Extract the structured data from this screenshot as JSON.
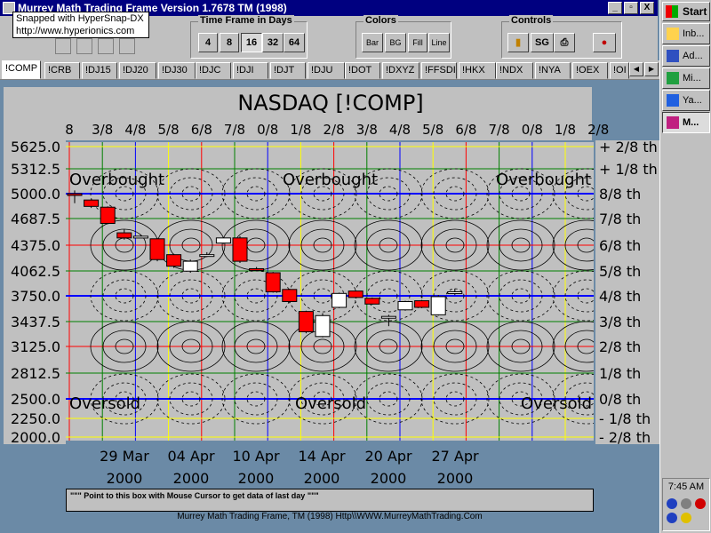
{
  "window": {
    "title": "Murrey Math Trading Frame Version 1.7678  TM (1998)",
    "buttons": [
      "_",
      "▫",
      "X"
    ]
  },
  "snapshot": {
    "line1": "Snapped with HyperSnap-DX",
    "line2": "http://www.hyperionics.com"
  },
  "timeframe": {
    "label": "Time Frame in Days",
    "options": [
      "4",
      "8",
      "16",
      "32",
      "64"
    ],
    "selected": "16"
  },
  "colors": {
    "label": "Colors",
    "options": [
      "Bar",
      "BG",
      "Fill",
      "Line"
    ]
  },
  "controls": {
    "label": "Controls",
    "sg": "SG"
  },
  "tabs": [
    "!COMP",
    "!CRB",
    "!DJ15",
    "!DJ20",
    "!DJ30",
    "!DJC",
    "!DJI",
    "!DJT",
    "!DJU",
    "!DOT",
    "!DXYZ",
    "!FFSDI",
    "!HKX",
    "!NDX",
    "!NYA",
    "!OEX",
    "!OI"
  ],
  "chart_data": {
    "type": "candlestick",
    "title": "NASDAQ [!COMP]",
    "top_ticks": [
      "8",
      "3/8",
      "4/8",
      "5/8",
      "6/8",
      "7/8",
      "0/8",
      "1/8",
      "2/8",
      "3/8",
      "4/8",
      "5/8",
      "6/8",
      "7/8",
      "0/8",
      "1/8",
      "2/8"
    ],
    "y_ticks": [
      "5625.0",
      "5312.5",
      "5000.0",
      "4687.5",
      "4375.0",
      "4062.5",
      "3750.0",
      "3437.5",
      "3125.0",
      "2812.5",
      "2500.0",
      "2250.0",
      "2000.0"
    ],
    "y_values": [
      5625.0,
      5312.5,
      5000.0,
      4687.5,
      4375.0,
      4062.5,
      3750.0,
      3437.5,
      3125.0,
      2812.5,
      2500.0,
      2250.0,
      2000.0
    ],
    "right_ticks": [
      "+ 2/8 th",
      "+ 1/8 th",
      "8/8 th",
      "7/8 th",
      "6/8 th",
      "5/8 th",
      "4/8 th",
      "3/8 th",
      "2/8 th",
      "1/8 th",
      "0/8 th",
      "- 1/8 th",
      "- 2/8 th"
    ],
    "x_labels": [
      {
        "date": "29 Mar",
        "year": "2000"
      },
      {
        "date": "04 Apr",
        "year": "2000"
      },
      {
        "date": "10 Apr",
        "year": "2000"
      },
      {
        "date": "14 Apr",
        "year": "2000"
      },
      {
        "date": "20 Apr",
        "year": "2000"
      },
      {
        "date": "27 Apr",
        "year": "2000"
      }
    ],
    "annotations": {
      "overbought": [
        "Overbought",
        "Overbought",
        "Overbought"
      ],
      "oversold": [
        "Oversold",
        "Oversold",
        "Oversold"
      ]
    },
    "candles": [
      {
        "open": 5000,
        "close": 4990,
        "high": 5040,
        "low": 4880
      },
      {
        "open": 4920,
        "close": 4840,
        "high": 4930,
        "low": 4820
      },
      {
        "open": 4830,
        "close": 4630,
        "high": 4840,
        "low": 4620
      },
      {
        "open": 4520,
        "close": 4460,
        "high": 4560,
        "low": 4440
      },
      {
        "open": 4480,
        "close": 4480,
        "high": 4500,
        "low": 4460
      },
      {
        "open": 4450,
        "close": 4200,
        "high": 4460,
        "low": 4180
      },
      {
        "open": 4260,
        "close": 4120,
        "high": 4270,
        "low": 4100
      },
      {
        "open": 4060,
        "close": 4180,
        "high": 4200,
        "low": 4040
      },
      {
        "open": 4260,
        "close": 4260,
        "high": 4290,
        "low": 4230
      },
      {
        "open": 4400,
        "close": 4460,
        "high": 4470,
        "low": 4390
      },
      {
        "open": 4460,
        "close": 4180,
        "high": 4480,
        "low": 4160
      },
      {
        "open": 4090,
        "close": 4080,
        "high": 4110,
        "low": 4060
      },
      {
        "open": 4040,
        "close": 3800,
        "high": 4050,
        "low": 3790
      },
      {
        "open": 3830,
        "close": 3680,
        "high": 3840,
        "low": 3660
      },
      {
        "open": 3560,
        "close": 3310,
        "high": 3570,
        "low": 3290
      },
      {
        "open": 3250,
        "close": 3510,
        "high": 3540,
        "low": 3240
      },
      {
        "open": 3610,
        "close": 3780,
        "high": 3790,
        "low": 3600
      },
      {
        "open": 3810,
        "close": 3730,
        "high": 3820,
        "low": 3720
      },
      {
        "open": 3720,
        "close": 3650,
        "high": 3730,
        "low": 3640
      },
      {
        "open": 3500,
        "close": 3500,
        "high": 3520,
        "low": 3380
      },
      {
        "open": 3580,
        "close": 3680,
        "high": 3690,
        "low": 3570
      },
      {
        "open": 3690,
        "close": 3610,
        "high": 3700,
        "low": 3600
      },
      {
        "open": 3520,
        "close": 3740,
        "high": 3760,
        "low": 3510
      },
      {
        "open": 3800,
        "close": 3800,
        "high": 3840,
        "low": 3760
      }
    ],
    "colors": {
      "background": "#c0c0c0",
      "down": "#ff0000",
      "up": "#ffffff",
      "blue": "#0000ff",
      "red": "#ff0000",
      "green": "#008000",
      "yellow": "#ffff00"
    }
  },
  "status": {
    "message": "\"\"\" Point to this box with Mouse Cursor to get data of last day \"\"\""
  },
  "footer": "Murrey Math Trading Frame, TM (1998)  Http\\\\WWW.MurreyMathTrading.Com",
  "taskbar": {
    "start": "Start",
    "items": [
      "Inb...",
      "Ad...",
      "Mi...",
      "Ya...",
      "M..."
    ],
    "clock": "7:45 AM"
  }
}
